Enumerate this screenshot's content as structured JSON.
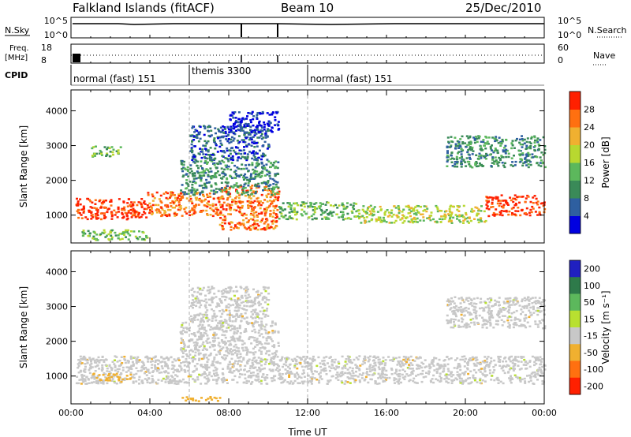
{
  "header": {
    "site": "Falkland Islands (fitACF)",
    "beam": "Beam 10",
    "date": "25/Dec/2010"
  },
  "top_panels": {
    "nsky_label": "N.Sky",
    "nsearch_label": "N.Search",
    "nsky_ticks": [
      "10^5",
      "10^0"
    ],
    "nsearch_ticks": [
      "10^5",
      "10^0"
    ],
    "freq_label": "Freq.",
    "freq_unit": "[MHz]",
    "freq_ticks": [
      "18",
      "8"
    ],
    "nave_label": "Nave",
    "nave_ticks": [
      "60",
      "0"
    ],
    "cpid_label": "CPID",
    "cpid_segments": [
      {
        "label": "normal (fast) 151",
        "start_hour": 0,
        "end_hour": 6
      },
      {
        "label": "themis 3300",
        "start_hour": 6,
        "end_hour": 12
      },
      {
        "label": "normal (fast) 151",
        "start_hour": 12,
        "end_hour": 24
      }
    ]
  },
  "chart_data": [
    {
      "type": "heatmap",
      "name": "power",
      "ylabel": "Slant Range [km]",
      "xlabel": "",
      "xlim": [
        0,
        24
      ],
      "ylim": [
        200,
        4600
      ],
      "yticks": [
        "1000",
        "2000",
        "3000",
        "4000"
      ],
      "colorbar": {
        "label": "Power [dB]",
        "ticks": [
          "4",
          "8",
          "12",
          "16",
          "20",
          "24",
          "28"
        ],
        "colors": [
          "#0000e0",
          "#2e5fa0",
          "#3a8a58",
          "#5cb85c",
          "#b8d830",
          "#f0b030",
          "#ff7010",
          "#ff2000"
        ]
      },
      "bands": [
        {
          "x0": 0.2,
          "x1": 3.8,
          "y0": 900,
          "y1": 1500,
          "level": 7
        },
        {
          "x0": 3.8,
          "x1": 7.5,
          "y0": 1000,
          "y1": 1700,
          "level": 6
        },
        {
          "x0": 7.5,
          "x1": 10.5,
          "y0": 600,
          "y1": 1900,
          "level": 6
        },
        {
          "x0": 10.5,
          "x1": 14.5,
          "y0": 900,
          "y1": 1400,
          "level": 3
        },
        {
          "x0": 14.5,
          "x1": 21.0,
          "y0": 800,
          "y1": 1300,
          "level": 4
        },
        {
          "x0": 21.0,
          "x1": 24.0,
          "y0": 1000,
          "y1": 1600,
          "level": 7
        },
        {
          "x0": 5.5,
          "x1": 10.5,
          "y0": 1600,
          "y1": 2600,
          "level": 2
        },
        {
          "x0": 6.0,
          "x1": 10.0,
          "y0": 2600,
          "y1": 3600,
          "level": 1
        },
        {
          "x0": 8.0,
          "x1": 10.5,
          "y0": 3400,
          "y1": 4000,
          "level": 0
        },
        {
          "x0": 19.0,
          "x1": 24.0,
          "y0": 2400,
          "y1": 3300,
          "level": 2
        },
        {
          "x0": 0.5,
          "x1": 4.0,
          "y0": 300,
          "y1": 600,
          "level": 3
        },
        {
          "x0": 1.0,
          "x1": 2.5,
          "y0": 2700,
          "y1": 3000,
          "level": 3
        }
      ]
    },
    {
      "type": "heatmap",
      "name": "velocity",
      "ylabel": "Slant Range [km]",
      "xlabel": "Time UT",
      "xlim": [
        0,
        24
      ],
      "ylim": [
        200,
        4600
      ],
      "xticks": [
        "00:00",
        "04:00",
        "08:00",
        "12:00",
        "16:00",
        "20:00",
        "00:00"
      ],
      "yticks": [
        "1000",
        "2000",
        "3000",
        "4000"
      ],
      "colorbar": {
        "label": "Velocity [m s⁻¹]",
        "ticks": [
          "200",
          "100",
          "50",
          "15",
          "-15",
          "-50",
          "-100",
          "-200"
        ],
        "colors": [
          "#2020c0",
          "#2e7a4a",
          "#5cb85c",
          "#b8e030",
          "#c8c8c8",
          "#f0b030",
          "#ff7010",
          "#ff2000"
        ]
      },
      "bands": [
        {
          "x0": 0.2,
          "x1": 24.0,
          "y0": 800,
          "y1": 1600,
          "level": 4
        },
        {
          "x0": 5.5,
          "x1": 10.5,
          "y0": 1600,
          "y1": 2600,
          "level": 4
        },
        {
          "x0": 6.0,
          "x1": 10.0,
          "y0": 2600,
          "y1": 3600,
          "level": 4
        },
        {
          "x0": 19.0,
          "x1": 24.0,
          "y0": 2400,
          "y1": 3300,
          "level": 4
        },
        {
          "x0": 5.5,
          "x1": 7.5,
          "y0": 300,
          "y1": 450,
          "level": 5
        },
        {
          "x0": 1.0,
          "x1": 3.0,
          "y0": 900,
          "y1": 1100,
          "level": 5
        }
      ]
    }
  ]
}
